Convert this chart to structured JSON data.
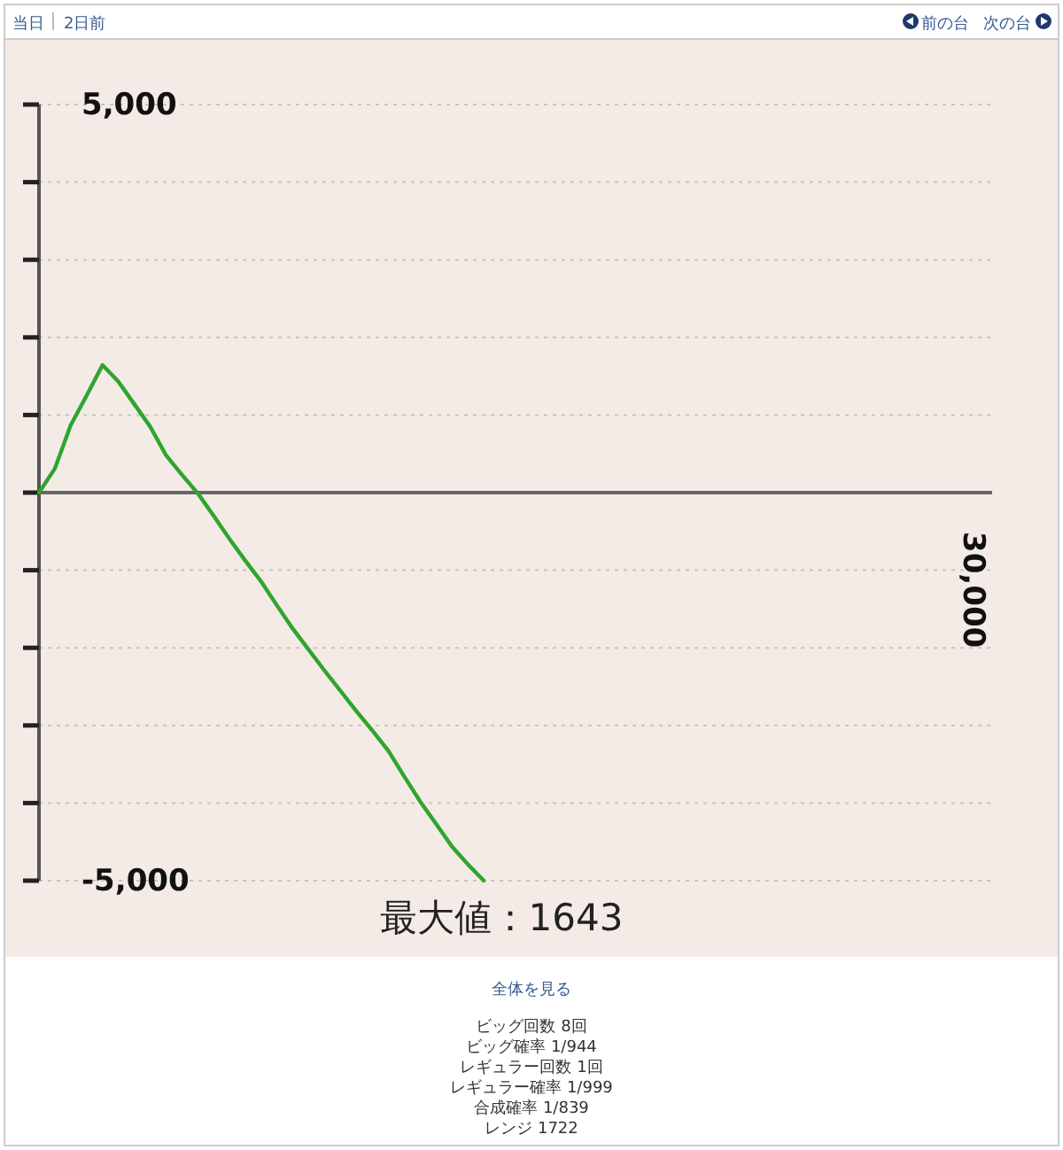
{
  "chart_data": {
    "type": "line",
    "categories": [
      null,
      null,
      null,
      null,
      null,
      null,
      null,
      null,
      null,
      null,
      null,
      null,
      null,
      null,
      null,
      null,
      null,
      null,
      null,
      null,
      null,
      null,
      null,
      null,
      null,
      null,
      null,
      null,
      null,
      null,
      null,
      null,
      null,
      null,
      null,
      null,
      null,
      null,
      null,
      null,
      null,
      null,
      null,
      null,
      null,
      null,
      null,
      null,
      null,
      null,
      null,
      null,
      null,
      null,
      null,
      null,
      null,
      null,
      null,
      null,
      null
    ],
    "ylim": [
      -5000,
      5000
    ],
    "yticks": [
      {
        "value": 5000,
        "label": "5,000"
      },
      {
        "value": 4000,
        "label": null
      },
      {
        "value": 3000,
        "label": null
      },
      {
        "value": 2000,
        "label": null
      },
      {
        "value": 1000,
        "label": null
      },
      {
        "value": 0,
        "label": null
      },
      {
        "value": -1000,
        "label": null
      },
      {
        "value": -2000,
        "label": null
      },
      {
        "value": -3000,
        "label": null
      },
      {
        "value": -4000,
        "label": null
      },
      {
        "value": -5000,
        "label": "-5,000"
      }
    ],
    "grid": "y",
    "line_style": "solid",
    "marker": "none",
    "series": [
      {
        "color": "#2ea52e",
        "values": [
          0,
          310,
          870,
          1250,
          1643,
          1430,
          1140,
          850,
          480,
          230,
          -10,
          -300,
          -600,
          -880,
          -1150,
          -1460,
          -1760,
          -2030,
          -2300,
          -2560,
          -2820,
          -3070,
          -3330,
          -3660,
          -3980,
          -4270,
          -4560,
          -4790,
          -5000,
          null,
          null,
          null,
          null,
          null,
          null,
          null,
          null,
          null,
          null,
          null,
          null,
          null,
          null,
          null,
          null,
          null,
          null,
          null,
          null,
          null,
          null,
          null,
          null,
          null,
          null,
          null,
          null,
          null,
          null,
          null,
          null
        ]
      }
    ],
    "annotations": [
      "最大値：1643",
      "当日",
      "2日前",
      "前の台",
      "次の台",
      "全体を見る",
      "ビッグ回数 8回",
      "ビッグ確率 1/944",
      "レギュラー回数 1回",
      "レギュラー確率 1/999",
      "合成確率 1/839",
      "レンジ 1722",
      "30,000"
    ]
  }
}
